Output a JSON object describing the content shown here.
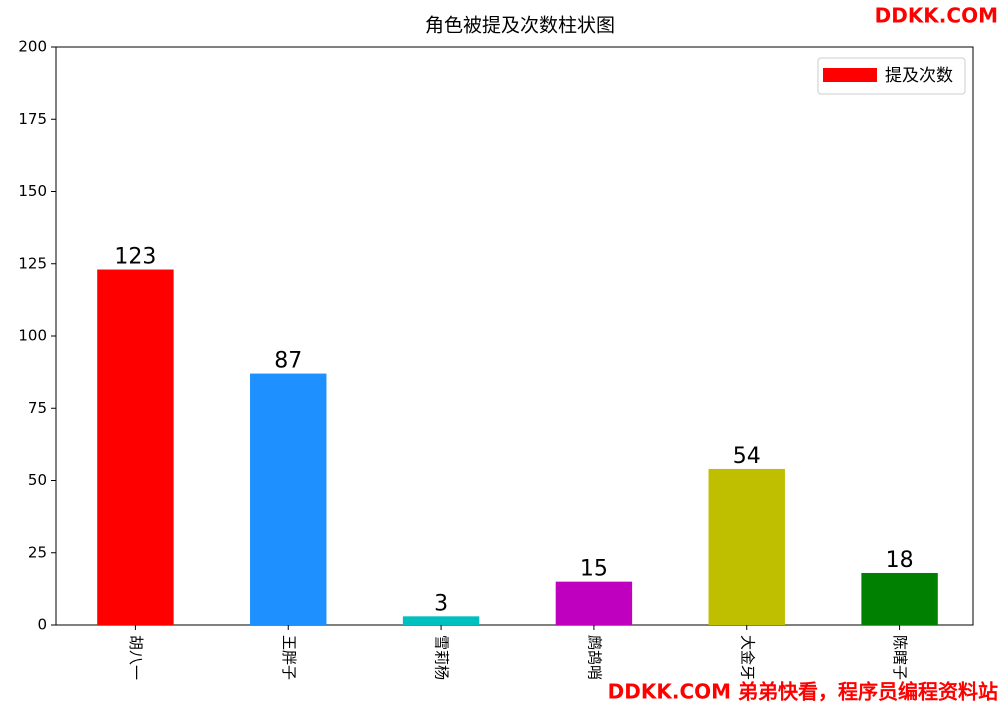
{
  "chart_data": {
    "type": "bar",
    "title": "角色被提及次数柱状图",
    "categories": [
      "胡八一",
      "王胖子",
      "雪莉杨",
      "鹧鸪哨",
      "大金牙",
      "陈瞎子"
    ],
    "series": [
      {
        "name": "提及次数",
        "color": "#ff0000",
        "values": [
          123,
          87,
          3,
          15,
          54,
          18
        ],
        "colors": [
          "#ff0000",
          "#1e90ff",
          "#00bfbf",
          "#bf00bf",
          "#bfbf00",
          "#008000"
        ]
      }
    ],
    "ylim": [
      0,
      200
    ],
    "yticks": [
      0,
      25,
      50,
      75,
      100,
      125,
      150,
      175,
      200
    ],
    "grid": false,
    "legend": "upper right"
  },
  "watermarks": [
    "DDKK.COM",
    "DDKK.COM 弟弟快看，程序员编程资料站"
  ]
}
